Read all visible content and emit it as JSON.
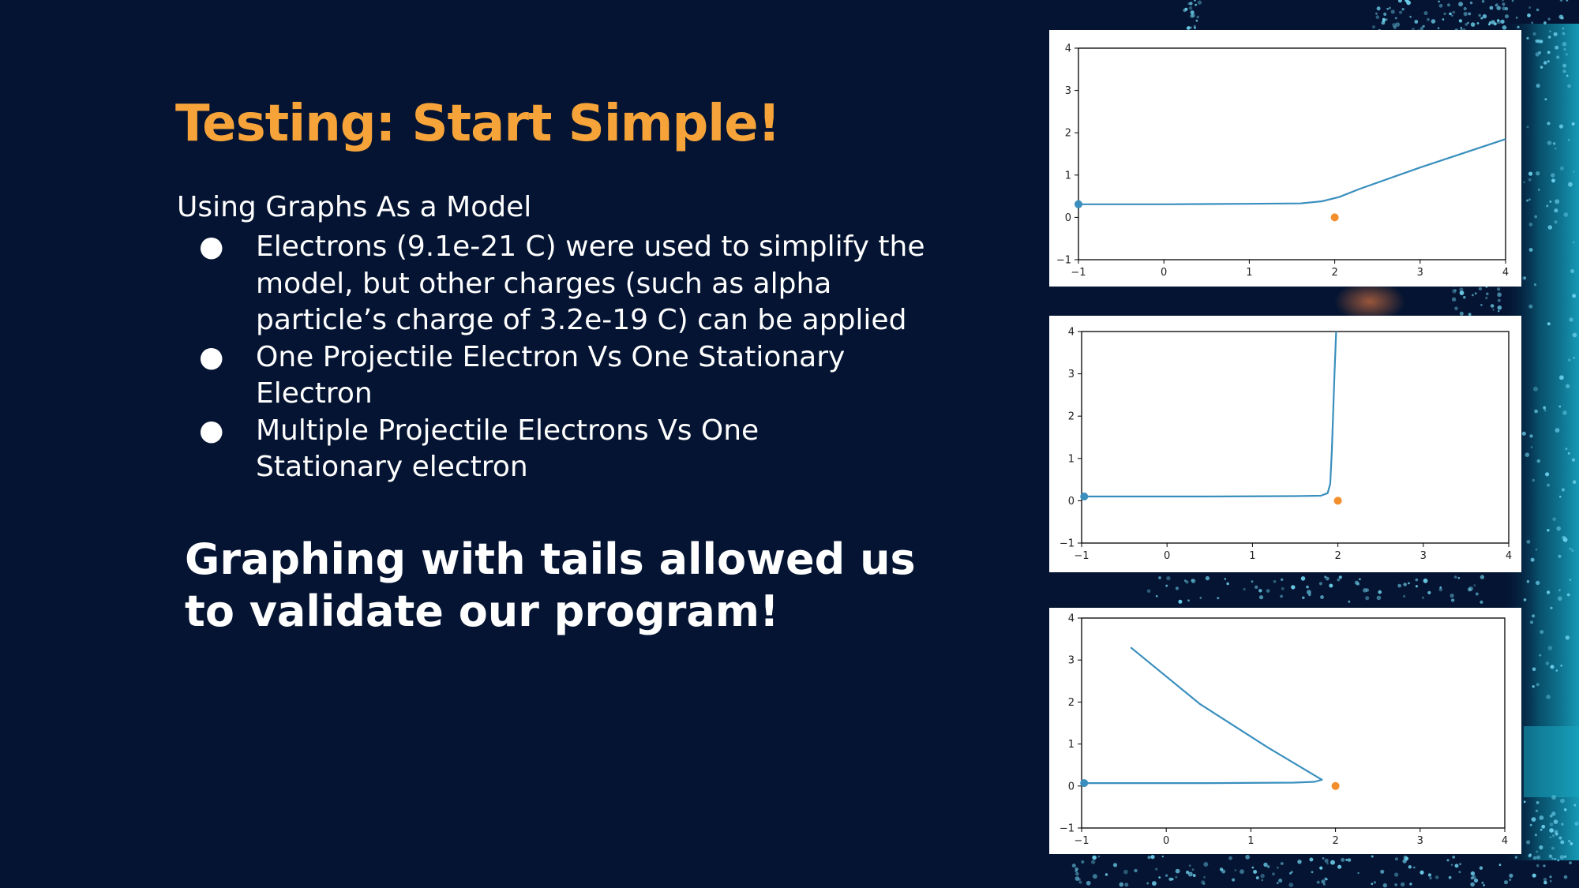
{
  "slide": {
    "title": "Testing: Start Simple!",
    "subtitle": "Using Graphs As a Model",
    "bullet_symbol": "●",
    "bullets": [
      {
        "lines": [
          "Electrons (9.1e-21 C) were used to simplify the",
          "model, but other charges (such as alpha",
          "particle’s charge of 3.2e-19 C) can be applied"
        ]
      },
      {
        "lines": [
          "One Projectile Electron Vs One Stationary",
          "Electron"
        ]
      },
      {
        "lines": [
          "Multiple Projectile Electrons Vs One",
          "Stationary electron"
        ]
      }
    ],
    "callout_lines": [
      "Graphing with tails allowed us",
      "to validate our program!"
    ]
  },
  "colors": {
    "background": "#041432",
    "title": "#F6A43A",
    "text": "#FFFFFF",
    "trajectory": "#3A8FBE",
    "stationary_point": "#F28E2B"
  },
  "chart_data": [
    {
      "type": "line",
      "title": "",
      "xlabel": "",
      "ylabel": "",
      "xlim": [
        -1,
        4
      ],
      "ylim": [
        -1,
        4
      ],
      "xticks": [
        "−1",
        "0",
        "1",
        "2",
        "3",
        "4"
      ],
      "yticks": [
        "−1",
        "0",
        "1",
        "2",
        "3",
        "4"
      ],
      "grid": false,
      "series": [
        {
          "role": "trajectory",
          "x": [
            -1.0,
            0.0,
            1.0,
            1.6,
            1.85,
            2.05,
            2.3,
            3.0,
            4.0
          ],
          "y": [
            0.31,
            0.31,
            0.32,
            0.33,
            0.38,
            0.48,
            0.68,
            1.18,
            1.85
          ]
        },
        {
          "role": "projectile-start",
          "x": [
            -1.0
          ],
          "y": [
            0.31
          ]
        },
        {
          "role": "stationary-electron",
          "x": [
            2.0
          ],
          "y": [
            0.0
          ]
        }
      ]
    },
    {
      "type": "line",
      "title": "",
      "xlabel": "",
      "ylabel": "",
      "xlim": [
        -1,
        4
      ],
      "ylim": [
        -1,
        4
      ],
      "xticks": [
        "−1",
        "0",
        "1",
        "2",
        "3",
        "4"
      ],
      "yticks": [
        "−1",
        "0",
        "1",
        "2",
        "3",
        "4"
      ],
      "grid": false,
      "series": [
        {
          "role": "trajectory",
          "x": [
            -0.97,
            0.5,
            1.5,
            1.8,
            1.88,
            1.91,
            1.93,
            1.96,
            1.98
          ],
          "y": [
            0.1,
            0.1,
            0.11,
            0.12,
            0.18,
            0.4,
            1.2,
            3.0,
            4.0
          ]
        },
        {
          "role": "projectile-start",
          "x": [
            -0.97
          ],
          "y": [
            0.1
          ]
        },
        {
          "role": "stationary-electron",
          "x": [
            2.0
          ],
          "y": [
            0.0
          ]
        }
      ]
    },
    {
      "type": "line",
      "title": "",
      "xlabel": "",
      "ylabel": "",
      "xlim": [
        -1,
        4
      ],
      "ylim": [
        -1,
        4
      ],
      "xticks": [
        "−1",
        "0",
        "1",
        "2",
        "3",
        "4"
      ],
      "yticks": [
        "−1",
        "0",
        "1",
        "2",
        "3",
        "4"
      ],
      "grid": false,
      "series": [
        {
          "role": "trajectory",
          "x": [
            -0.97,
            0.5,
            1.5,
            1.75,
            1.84,
            1.78,
            1.2,
            0.4,
            -0.42
          ],
          "y": [
            0.07,
            0.07,
            0.08,
            0.1,
            0.15,
            0.22,
            0.92,
            1.95,
            3.3
          ]
        },
        {
          "role": "projectile-start",
          "x": [
            -0.97
          ],
          "y": [
            0.07
          ]
        },
        {
          "role": "stationary-electron",
          "x": [
            2.0
          ],
          "y": [
            0.0
          ]
        }
      ]
    }
  ]
}
